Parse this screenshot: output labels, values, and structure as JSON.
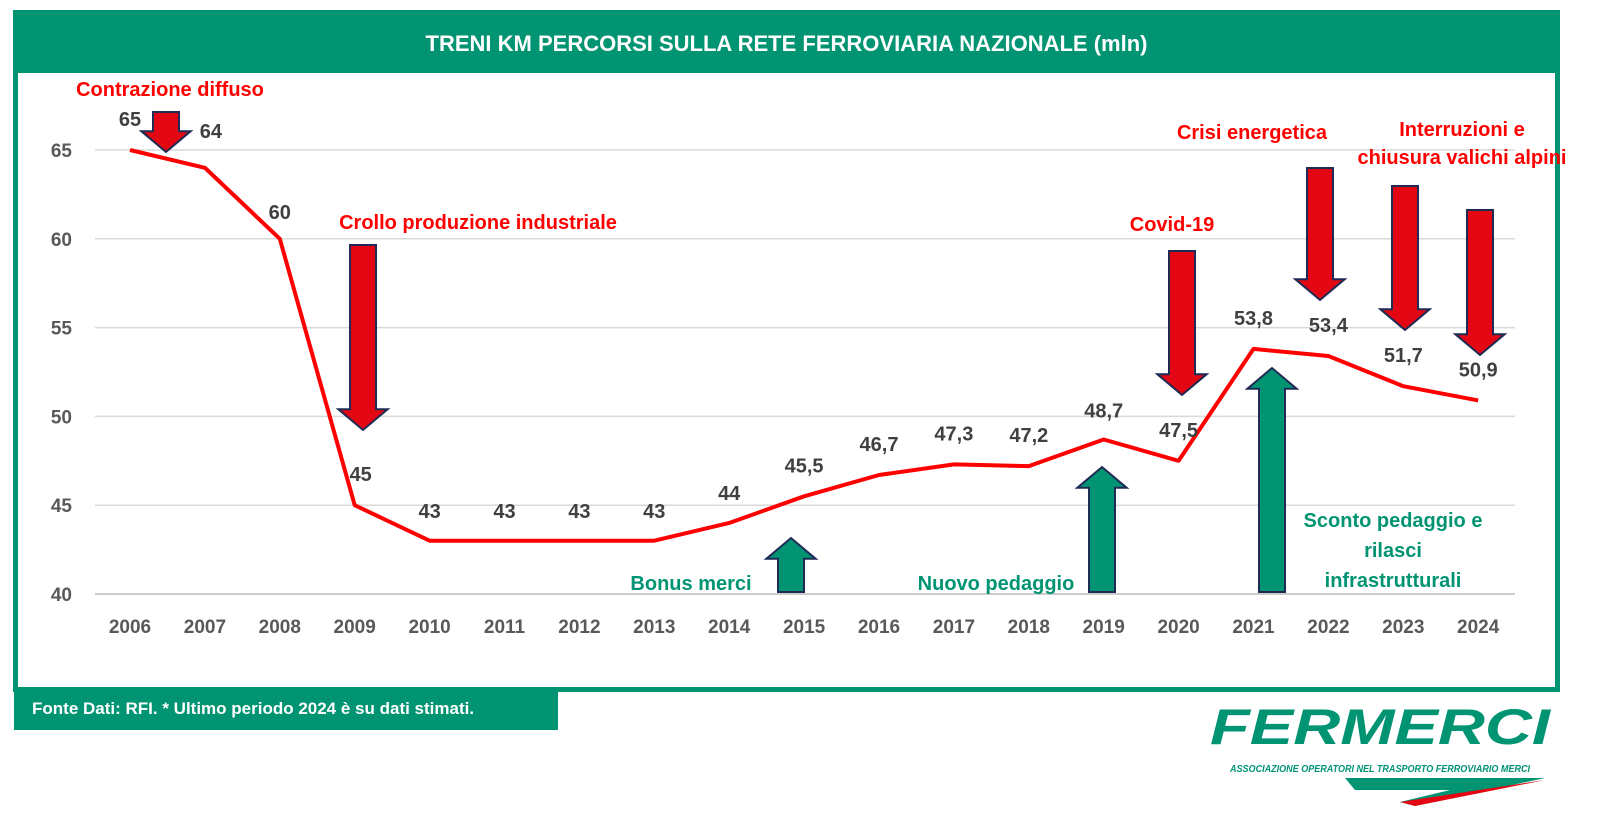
{
  "chart_data": {
    "type": "line",
    "title": "TRENI KM PERCORSI SULLA RETE FERROVIARIA NAZIONALE (mln)",
    "categories": [
      "2006",
      "2007",
      "2008",
      "2009",
      "2010",
      "2011",
      "2012",
      "2013",
      "2014",
      "2015",
      "2016",
      "2017",
      "2018",
      "2019",
      "2020",
      "2021",
      "2022",
      "2023",
      "2024"
    ],
    "values": [
      65,
      64,
      60,
      45,
      43,
      43,
      43,
      43,
      44,
      45.5,
      46.7,
      47.3,
      47.2,
      48.7,
      47.5,
      53.8,
      53.4,
      51.7,
      50.9
    ],
    "labels": [
      "65",
      "64",
      "60",
      "45",
      "43",
      "43",
      "43",
      "43",
      "44",
      "45,5",
      "46,7",
      "47,3",
      "47,2",
      "48,7",
      "47,5",
      "53,8",
      "53,4",
      "51,7",
      "50,9"
    ],
    "ylim": [
      40,
      65
    ],
    "yticks": [
      "40",
      "45",
      "50",
      "55",
      "60",
      "65"
    ],
    "grid": true,
    "line_color": "#ff0000",
    "annotations": {
      "neg": [
        "Contrazione diffuso",
        "Crollo produzione industriale",
        "Covid-19",
        "Crisi energetica",
        "Interruzioni e",
        "chiusura  valichi alpini"
      ],
      "pos": [
        "Bonus merci",
        "Nuovo pedaggio",
        "Sconto pedaggio e",
        "rilasci",
        "infrastrutturali"
      ]
    }
  },
  "footer": {
    "source": "Fonte Dati: RFI. * Ultimo periodo 2024 è su dati stimati."
  },
  "logo": {
    "name": "FERMERCI",
    "tagline": "ASSOCIAZIONE OPERATORI NEL TRASPORTO FERROVIARIO MERCI"
  },
  "colors": {
    "green": "#009473",
    "red": "#e30613",
    "negText": "#ff0000"
  }
}
